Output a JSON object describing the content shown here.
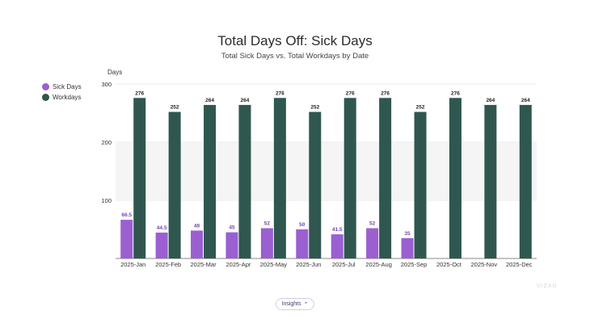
{
  "title": "Total Days Off: Sick Days",
  "subtitle": "Total Sick Days vs. Total Workdays by Date",
  "watermark": "VIZXU",
  "insights_label": "Insights",
  "chart_data": {
    "type": "bar",
    "ylabel": "Days",
    "ylim": [
      0,
      300
    ],
    "yticks": [
      100,
      200,
      300
    ],
    "grid": true,
    "legend_position": "left",
    "categories": [
      "2025-Jan",
      "2025-Feb",
      "2025-Mar",
      "2025-Apr",
      "2025-May",
      "2025-Jun",
      "2025-Jul",
      "2025-Aug",
      "2025-Sep",
      "2025-Oct",
      "2025-Nov",
      "2025-Dec"
    ],
    "series": [
      {
        "name": "Sick Days",
        "color": "#9b5fd1",
        "values": [
          66.5,
          44.5,
          48,
          45,
          52,
          50,
          41.5,
          52,
          35,
          null,
          null,
          null
        ]
      },
      {
        "name": "Workdays",
        "color": "#2f5750",
        "values": [
          276,
          252,
          264,
          264,
          276,
          252,
          276,
          276,
          252,
          276,
          264,
          264
        ]
      }
    ]
  }
}
